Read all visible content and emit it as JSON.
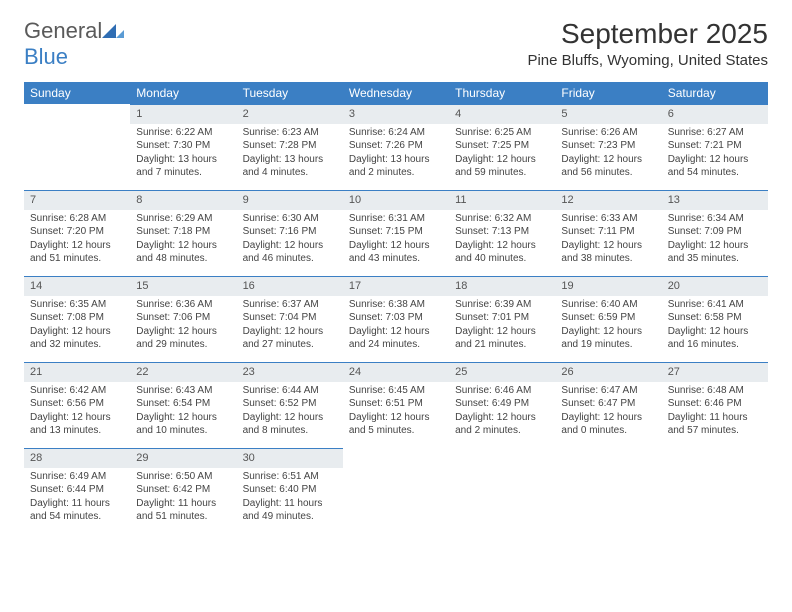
{
  "logo": {
    "word1": "General",
    "word2": "Blue"
  },
  "title": "September 2025",
  "location": "Pine Bluffs, Wyoming, United States",
  "colors": {
    "header_bg": "#3b7fc4",
    "header_text": "#ffffff",
    "daynum_bg": "#e8ecef",
    "daynum_border": "#3b7fc4",
    "text": "#444444",
    "logo_gray": "#5a5a5a",
    "logo_blue": "#3b7fc4"
  },
  "weekdays": [
    "Sunday",
    "Monday",
    "Tuesday",
    "Wednesday",
    "Thursday",
    "Friday",
    "Saturday"
  ],
  "weeks": [
    [
      null,
      {
        "n": "1",
        "sunrise": "6:22 AM",
        "sunset": "7:30 PM",
        "daylight": "13 hours and 7 minutes."
      },
      {
        "n": "2",
        "sunrise": "6:23 AM",
        "sunset": "7:28 PM",
        "daylight": "13 hours and 4 minutes."
      },
      {
        "n": "3",
        "sunrise": "6:24 AM",
        "sunset": "7:26 PM",
        "daylight": "13 hours and 2 minutes."
      },
      {
        "n": "4",
        "sunrise": "6:25 AM",
        "sunset": "7:25 PM",
        "daylight": "12 hours and 59 minutes."
      },
      {
        "n": "5",
        "sunrise": "6:26 AM",
        "sunset": "7:23 PM",
        "daylight": "12 hours and 56 minutes."
      },
      {
        "n": "6",
        "sunrise": "6:27 AM",
        "sunset": "7:21 PM",
        "daylight": "12 hours and 54 minutes."
      }
    ],
    [
      {
        "n": "7",
        "sunrise": "6:28 AM",
        "sunset": "7:20 PM",
        "daylight": "12 hours and 51 minutes."
      },
      {
        "n": "8",
        "sunrise": "6:29 AM",
        "sunset": "7:18 PM",
        "daylight": "12 hours and 48 minutes."
      },
      {
        "n": "9",
        "sunrise": "6:30 AM",
        "sunset": "7:16 PM",
        "daylight": "12 hours and 46 minutes."
      },
      {
        "n": "10",
        "sunrise": "6:31 AM",
        "sunset": "7:15 PM",
        "daylight": "12 hours and 43 minutes."
      },
      {
        "n": "11",
        "sunrise": "6:32 AM",
        "sunset": "7:13 PM",
        "daylight": "12 hours and 40 minutes."
      },
      {
        "n": "12",
        "sunrise": "6:33 AM",
        "sunset": "7:11 PM",
        "daylight": "12 hours and 38 minutes."
      },
      {
        "n": "13",
        "sunrise": "6:34 AM",
        "sunset": "7:09 PM",
        "daylight": "12 hours and 35 minutes."
      }
    ],
    [
      {
        "n": "14",
        "sunrise": "6:35 AM",
        "sunset": "7:08 PM",
        "daylight": "12 hours and 32 minutes."
      },
      {
        "n": "15",
        "sunrise": "6:36 AM",
        "sunset": "7:06 PM",
        "daylight": "12 hours and 29 minutes."
      },
      {
        "n": "16",
        "sunrise": "6:37 AM",
        "sunset": "7:04 PM",
        "daylight": "12 hours and 27 minutes."
      },
      {
        "n": "17",
        "sunrise": "6:38 AM",
        "sunset": "7:03 PM",
        "daylight": "12 hours and 24 minutes."
      },
      {
        "n": "18",
        "sunrise": "6:39 AM",
        "sunset": "7:01 PM",
        "daylight": "12 hours and 21 minutes."
      },
      {
        "n": "19",
        "sunrise": "6:40 AM",
        "sunset": "6:59 PM",
        "daylight": "12 hours and 19 minutes."
      },
      {
        "n": "20",
        "sunrise": "6:41 AM",
        "sunset": "6:58 PM",
        "daylight": "12 hours and 16 minutes."
      }
    ],
    [
      {
        "n": "21",
        "sunrise": "6:42 AM",
        "sunset": "6:56 PM",
        "daylight": "12 hours and 13 minutes."
      },
      {
        "n": "22",
        "sunrise": "6:43 AM",
        "sunset": "6:54 PM",
        "daylight": "12 hours and 10 minutes."
      },
      {
        "n": "23",
        "sunrise": "6:44 AM",
        "sunset": "6:52 PM",
        "daylight": "12 hours and 8 minutes."
      },
      {
        "n": "24",
        "sunrise": "6:45 AM",
        "sunset": "6:51 PM",
        "daylight": "12 hours and 5 minutes."
      },
      {
        "n": "25",
        "sunrise": "6:46 AM",
        "sunset": "6:49 PM",
        "daylight": "12 hours and 2 minutes."
      },
      {
        "n": "26",
        "sunrise": "6:47 AM",
        "sunset": "6:47 PM",
        "daylight": "12 hours and 0 minutes."
      },
      {
        "n": "27",
        "sunrise": "6:48 AM",
        "sunset": "6:46 PM",
        "daylight": "11 hours and 57 minutes."
      }
    ],
    [
      {
        "n": "28",
        "sunrise": "6:49 AM",
        "sunset": "6:44 PM",
        "daylight": "11 hours and 54 minutes."
      },
      {
        "n": "29",
        "sunrise": "6:50 AM",
        "sunset": "6:42 PM",
        "daylight": "11 hours and 51 minutes."
      },
      {
        "n": "30",
        "sunrise": "6:51 AM",
        "sunset": "6:40 PM",
        "daylight": "11 hours and 49 minutes."
      },
      null,
      null,
      null,
      null
    ]
  ],
  "labels": {
    "sunrise": "Sunrise: ",
    "sunset": "Sunset: ",
    "daylight": "Daylight: "
  }
}
